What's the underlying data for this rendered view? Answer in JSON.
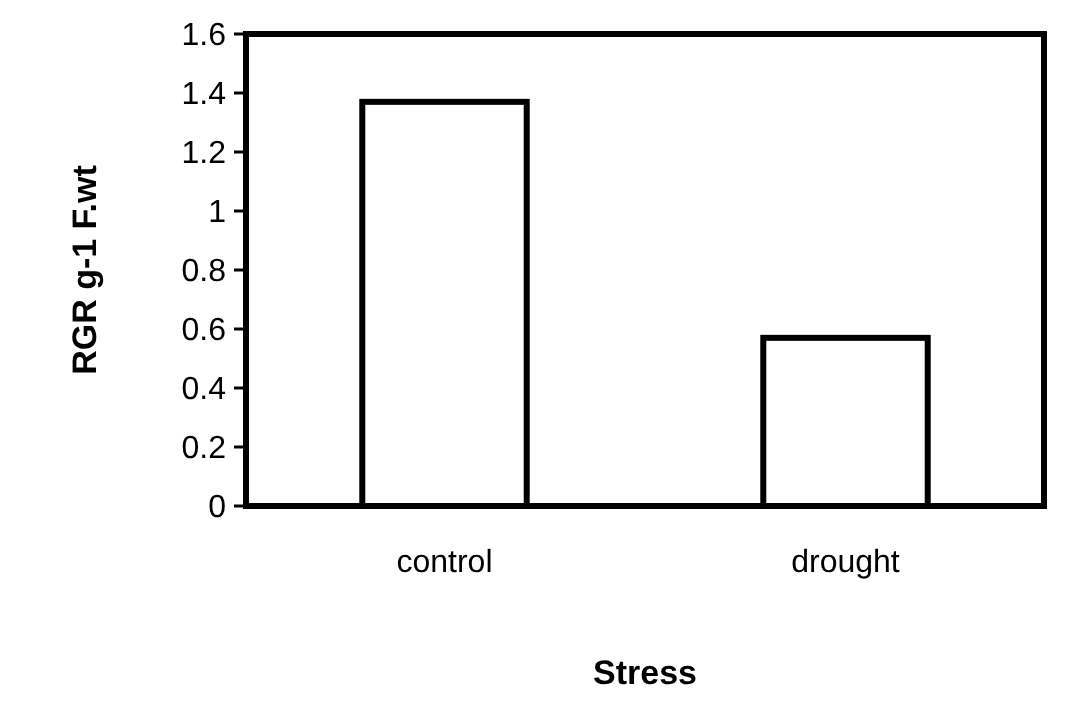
{
  "chart_data": {
    "type": "bar",
    "categories": [
      "control",
      "drought"
    ],
    "values": [
      1.37,
      0.57
    ],
    "color": "#ffffff",
    "xlabel": "Stress",
    "ylabel": "RGR g-1 F.wt",
    "ylim": [
      0,
      1.6
    ],
    "yticks": [
      0,
      0.2,
      0.4,
      0.6,
      0.8,
      1,
      1.2,
      1.4,
      1.6
    ],
    "grid": false
  }
}
